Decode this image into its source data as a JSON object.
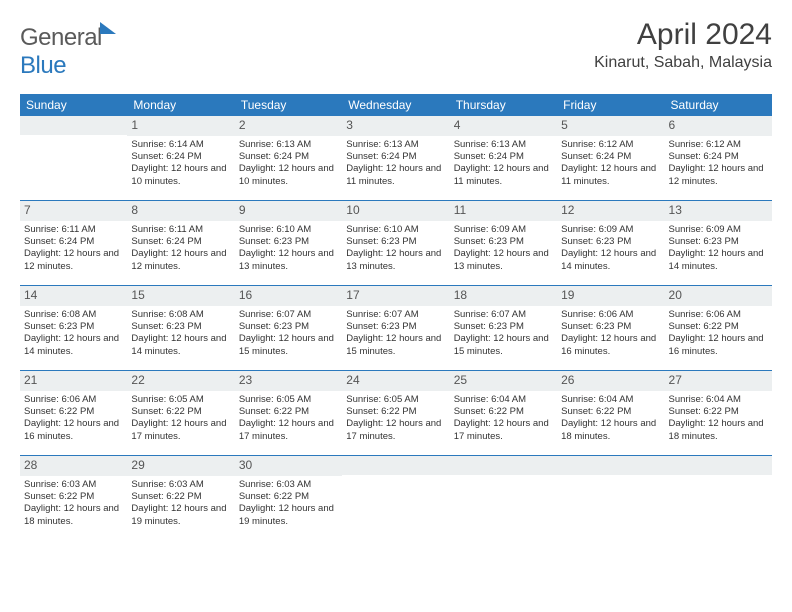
{
  "brand": {
    "name_part1": "General",
    "name_part2": "Blue"
  },
  "title": {
    "month": "April 2024",
    "location": "Kinarut, Sabah, Malaysia"
  },
  "colors": {
    "header_bg": "#2b79bd",
    "header_text": "#ffffff",
    "daynum_bg": "#eceff0",
    "daynum_text": "#555555",
    "body_text": "#333333",
    "rule": "#2b79bd",
    "page_bg": "#ffffff"
  },
  "typography": {
    "month_title_fontsize": 30,
    "location_fontsize": 16,
    "weekday_fontsize": 12,
    "daynum_fontsize": 12,
    "cell_fontsize": 9.5,
    "logo_fontsize": 24
  },
  "weekdays": [
    "Sunday",
    "Monday",
    "Tuesday",
    "Wednesday",
    "Thursday",
    "Friday",
    "Saturday"
  ],
  "weeks": [
    [
      {
        "day": "",
        "sunrise": "",
        "sunset": "",
        "daylight": ""
      },
      {
        "day": "1",
        "sunrise": "Sunrise: 6:14 AM",
        "sunset": "Sunset: 6:24 PM",
        "daylight": "Daylight: 12 hours and 10 minutes."
      },
      {
        "day": "2",
        "sunrise": "Sunrise: 6:13 AM",
        "sunset": "Sunset: 6:24 PM",
        "daylight": "Daylight: 12 hours and 10 minutes."
      },
      {
        "day": "3",
        "sunrise": "Sunrise: 6:13 AM",
        "sunset": "Sunset: 6:24 PM",
        "daylight": "Daylight: 12 hours and 11 minutes."
      },
      {
        "day": "4",
        "sunrise": "Sunrise: 6:13 AM",
        "sunset": "Sunset: 6:24 PM",
        "daylight": "Daylight: 12 hours and 11 minutes."
      },
      {
        "day": "5",
        "sunrise": "Sunrise: 6:12 AM",
        "sunset": "Sunset: 6:24 PM",
        "daylight": "Daylight: 12 hours and 11 minutes."
      },
      {
        "day": "6",
        "sunrise": "Sunrise: 6:12 AM",
        "sunset": "Sunset: 6:24 PM",
        "daylight": "Daylight: 12 hours and 12 minutes."
      }
    ],
    [
      {
        "day": "7",
        "sunrise": "Sunrise: 6:11 AM",
        "sunset": "Sunset: 6:24 PM",
        "daylight": "Daylight: 12 hours and 12 minutes."
      },
      {
        "day": "8",
        "sunrise": "Sunrise: 6:11 AM",
        "sunset": "Sunset: 6:24 PM",
        "daylight": "Daylight: 12 hours and 12 minutes."
      },
      {
        "day": "9",
        "sunrise": "Sunrise: 6:10 AM",
        "sunset": "Sunset: 6:23 PM",
        "daylight": "Daylight: 12 hours and 13 minutes."
      },
      {
        "day": "10",
        "sunrise": "Sunrise: 6:10 AM",
        "sunset": "Sunset: 6:23 PM",
        "daylight": "Daylight: 12 hours and 13 minutes."
      },
      {
        "day": "11",
        "sunrise": "Sunrise: 6:09 AM",
        "sunset": "Sunset: 6:23 PM",
        "daylight": "Daylight: 12 hours and 13 minutes."
      },
      {
        "day": "12",
        "sunrise": "Sunrise: 6:09 AM",
        "sunset": "Sunset: 6:23 PM",
        "daylight": "Daylight: 12 hours and 14 minutes."
      },
      {
        "day": "13",
        "sunrise": "Sunrise: 6:09 AM",
        "sunset": "Sunset: 6:23 PM",
        "daylight": "Daylight: 12 hours and 14 minutes."
      }
    ],
    [
      {
        "day": "14",
        "sunrise": "Sunrise: 6:08 AM",
        "sunset": "Sunset: 6:23 PM",
        "daylight": "Daylight: 12 hours and 14 minutes."
      },
      {
        "day": "15",
        "sunrise": "Sunrise: 6:08 AM",
        "sunset": "Sunset: 6:23 PM",
        "daylight": "Daylight: 12 hours and 14 minutes."
      },
      {
        "day": "16",
        "sunrise": "Sunrise: 6:07 AM",
        "sunset": "Sunset: 6:23 PM",
        "daylight": "Daylight: 12 hours and 15 minutes."
      },
      {
        "day": "17",
        "sunrise": "Sunrise: 6:07 AM",
        "sunset": "Sunset: 6:23 PM",
        "daylight": "Daylight: 12 hours and 15 minutes."
      },
      {
        "day": "18",
        "sunrise": "Sunrise: 6:07 AM",
        "sunset": "Sunset: 6:23 PM",
        "daylight": "Daylight: 12 hours and 15 minutes."
      },
      {
        "day": "19",
        "sunrise": "Sunrise: 6:06 AM",
        "sunset": "Sunset: 6:23 PM",
        "daylight": "Daylight: 12 hours and 16 minutes."
      },
      {
        "day": "20",
        "sunrise": "Sunrise: 6:06 AM",
        "sunset": "Sunset: 6:22 PM",
        "daylight": "Daylight: 12 hours and 16 minutes."
      }
    ],
    [
      {
        "day": "21",
        "sunrise": "Sunrise: 6:06 AM",
        "sunset": "Sunset: 6:22 PM",
        "daylight": "Daylight: 12 hours and 16 minutes."
      },
      {
        "day": "22",
        "sunrise": "Sunrise: 6:05 AM",
        "sunset": "Sunset: 6:22 PM",
        "daylight": "Daylight: 12 hours and 17 minutes."
      },
      {
        "day": "23",
        "sunrise": "Sunrise: 6:05 AM",
        "sunset": "Sunset: 6:22 PM",
        "daylight": "Daylight: 12 hours and 17 minutes."
      },
      {
        "day": "24",
        "sunrise": "Sunrise: 6:05 AM",
        "sunset": "Sunset: 6:22 PM",
        "daylight": "Daylight: 12 hours and 17 minutes."
      },
      {
        "day": "25",
        "sunrise": "Sunrise: 6:04 AM",
        "sunset": "Sunset: 6:22 PM",
        "daylight": "Daylight: 12 hours and 17 minutes."
      },
      {
        "day": "26",
        "sunrise": "Sunrise: 6:04 AM",
        "sunset": "Sunset: 6:22 PM",
        "daylight": "Daylight: 12 hours and 18 minutes."
      },
      {
        "day": "27",
        "sunrise": "Sunrise: 6:04 AM",
        "sunset": "Sunset: 6:22 PM",
        "daylight": "Daylight: 12 hours and 18 minutes."
      }
    ],
    [
      {
        "day": "28",
        "sunrise": "Sunrise: 6:03 AM",
        "sunset": "Sunset: 6:22 PM",
        "daylight": "Daylight: 12 hours and 18 minutes."
      },
      {
        "day": "29",
        "sunrise": "Sunrise: 6:03 AM",
        "sunset": "Sunset: 6:22 PM",
        "daylight": "Daylight: 12 hours and 19 minutes."
      },
      {
        "day": "30",
        "sunrise": "Sunrise: 6:03 AM",
        "sunset": "Sunset: 6:22 PM",
        "daylight": "Daylight: 12 hours and 19 minutes."
      },
      {
        "day": "",
        "sunrise": "",
        "sunset": "",
        "daylight": ""
      },
      {
        "day": "",
        "sunrise": "",
        "sunset": "",
        "daylight": ""
      },
      {
        "day": "",
        "sunrise": "",
        "sunset": "",
        "daylight": ""
      },
      {
        "day": "",
        "sunrise": "",
        "sunset": "",
        "daylight": ""
      }
    ]
  ]
}
